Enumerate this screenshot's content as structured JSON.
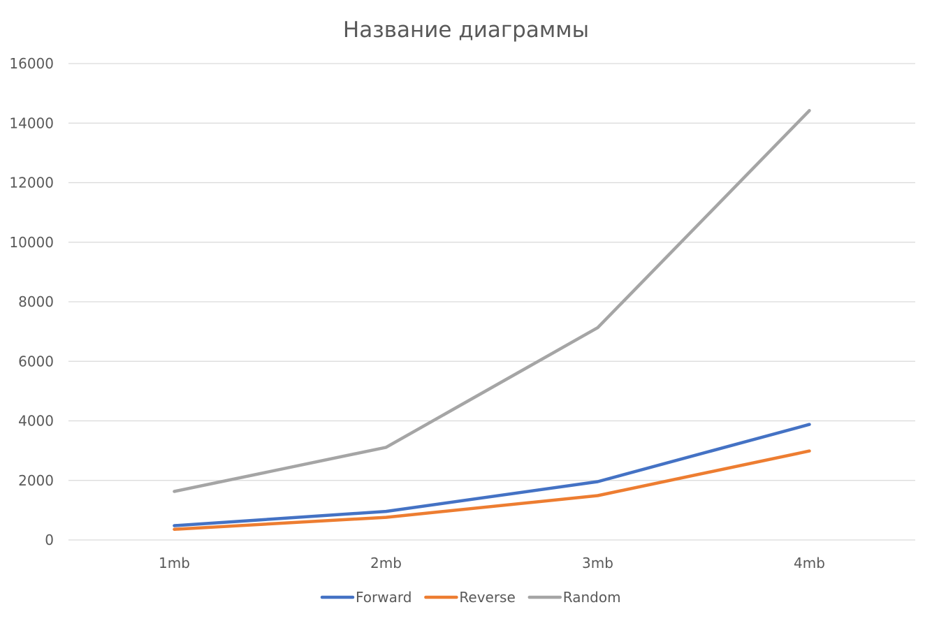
{
  "chart_data": {
    "type": "line",
    "title": "Название диаграммы",
    "xlabel": "",
    "ylabel": "",
    "categories": [
      "1mb",
      "2mb",
      "3mb",
      "4mb"
    ],
    "ylim": [
      0,
      16000
    ],
    "yticks": [
      0,
      2000,
      4000,
      6000,
      8000,
      10000,
      12000,
      14000,
      16000
    ],
    "grid": true,
    "legend_position": "bottom",
    "series": [
      {
        "name": "Forward",
        "color": "#4472c4",
        "values": [
          480,
          960,
          1960,
          3880
        ]
      },
      {
        "name": "Reverse",
        "color": "#ed7d31",
        "values": [
          360,
          760,
          1490,
          2990
        ]
      },
      {
        "name": "Random",
        "color": "#a5a5a5",
        "values": [
          1630,
          3110,
          7130,
          14420
        ]
      }
    ]
  }
}
